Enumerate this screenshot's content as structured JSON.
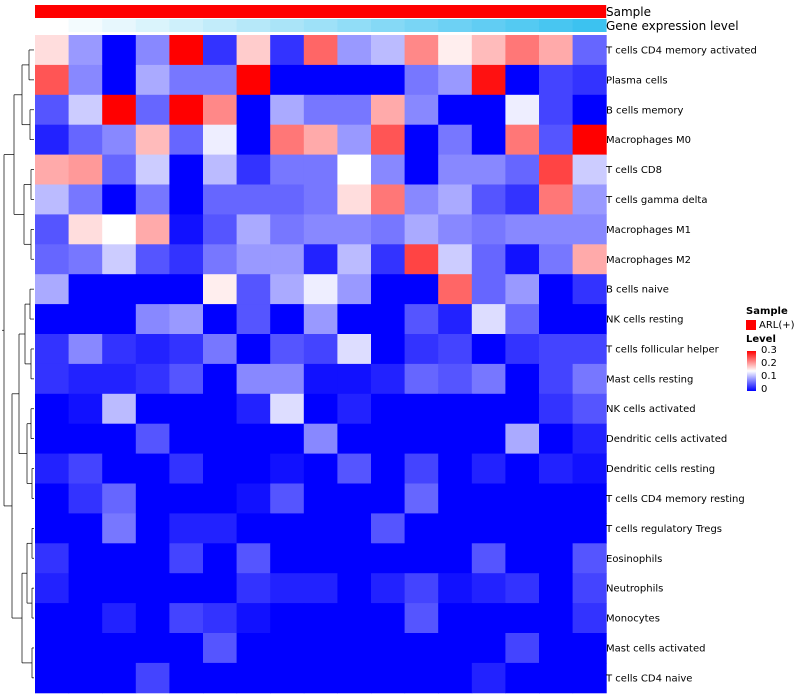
{
  "chart_data": {
    "type": "heatmap",
    "annotations": [
      {
        "name": "Sample",
        "color": "#ff0000"
      },
      {
        "name": "Gene expression level",
        "gradient": [
          "#ffffff",
          "#3cc2f0"
        ]
      }
    ],
    "rows": [
      "T cells CD4 memory activated",
      "Plasma cells",
      "B cells memory",
      "Macrophages M0",
      "T cells CD8",
      "T cells gamma delta",
      "Macrophages M1",
      "Macrophages M2",
      "B cells naive",
      "NK cells resting",
      "T cells follicular helper",
      "Mast cells resting",
      "NK cells activated",
      "Dendritic cells activated",
      "Dendritic cells resting",
      "T cells CD4 memory resting",
      "T cells regulatory  Tregs",
      "Eosinophils",
      "Neutrophils",
      "Monocytes",
      "Mast cells activated",
      "T cells CD4 naive"
    ],
    "n_columns": 17,
    "values": [
      [
        0.17,
        0.09,
        0,
        0.08,
        0.3,
        0.03,
        0.18,
        0.03,
        0.24,
        0.09,
        0.11,
        0.22,
        0.16,
        0.19,
        0.23,
        0.2,
        0.06
      ],
      [
        0.25,
        0.08,
        0,
        0.1,
        0.07,
        0.07,
        0.3,
        0,
        0,
        0,
        0,
        0.07,
        0.09,
        0.29,
        0,
        0.04,
        0.03
      ],
      [
        0.05,
        0.12,
        0.3,
        0.06,
        0.3,
        0.22,
        0,
        0.1,
        0.07,
        0.07,
        0.2,
        0.08,
        0,
        0,
        0.14,
        0.04,
        0
      ],
      [
        0.02,
        0.06,
        0.08,
        0.19,
        0.06,
        0.14,
        0,
        0.23,
        0.2,
        0.09,
        0.25,
        0,
        0.07,
        0,
        0.23,
        0.05,
        0.3
      ],
      [
        0.2,
        0.21,
        0.06,
        0.12,
        0,
        0.11,
        0.03,
        0.07,
        0.07,
        0.15,
        0.08,
        0,
        0.08,
        0.08,
        0.06,
        0.26,
        0.12
      ],
      [
        0.11,
        0.07,
        0,
        0.07,
        0,
        0.06,
        0.06,
        0.06,
        0.07,
        0.17,
        0.23,
        0.08,
        0.1,
        0.05,
        0.03,
        0.23,
        0.09
      ],
      [
        0.05,
        0.17,
        0.15,
        0.2,
        0.01,
        0.05,
        0.1,
        0.07,
        0.08,
        0.08,
        0.07,
        0.1,
        0.08,
        0.07,
        0.08,
        0.08,
        0.08
      ],
      [
        0.06,
        0.07,
        0.12,
        0.05,
        0.03,
        0.07,
        0.09,
        0.09,
        0.02,
        0.11,
        0.03,
        0.26,
        0.12,
        0.06,
        0.01,
        0.07,
        0.2
      ],
      [
        0.1,
        0,
        0,
        0,
        0,
        0.16,
        0.05,
        0.1,
        0.14,
        0.09,
        0,
        0,
        0.24,
        0.06,
        0.09,
        0,
        0.03
      ],
      [
        0,
        0,
        0,
        0.08,
        0.09,
        0,
        0.05,
        0,
        0.09,
        0,
        0,
        0.05,
        0.02,
        0.13,
        0.06,
        0,
        0
      ],
      [
        0.03,
        0.08,
        0.03,
        0.02,
        0.03,
        0.07,
        0,
        0.05,
        0.04,
        0.13,
        0,
        0.03,
        0.04,
        0,
        0.03,
        0.04,
        0.04
      ],
      [
        0.03,
        0.02,
        0.02,
        0.03,
        0.05,
        0,
        0.08,
        0.08,
        0.01,
        0.01,
        0.02,
        0.06,
        0.05,
        0.07,
        0,
        0.04,
        0.07
      ],
      [
        0,
        0.01,
        0.11,
        0,
        0,
        0,
        0.02,
        0.13,
        0,
        0.02,
        0,
        0,
        0,
        0,
        0,
        0.03,
        0.05
      ],
      [
        0,
        0,
        0,
        0.05,
        0,
        0,
        0,
        0,
        0.08,
        0,
        0,
        0,
        0,
        0,
        0.1,
        0,
        0.02
      ],
      [
        0.02,
        0.04,
        0,
        0,
        0.03,
        0,
        0,
        0.01,
        0,
        0.05,
        0,
        0.04,
        0,
        0.02,
        0,
        0.02,
        0.01
      ],
      [
        0,
        0.03,
        0.06,
        0,
        0,
        0,
        0.01,
        0.05,
        0,
        0,
        0,
        0.06,
        0,
        0,
        0,
        0,
        0
      ],
      [
        0,
        0,
        0.07,
        0,
        0.02,
        0.02,
        0,
        0,
        0,
        0,
        0.05,
        0,
        0,
        0,
        0,
        0,
        0
      ],
      [
        0.03,
        0,
        0,
        0,
        0.04,
        0,
        0.05,
        0,
        0,
        0,
        0,
        0,
        0,
        0.05,
        0,
        0,
        0.05
      ],
      [
        0.02,
        0,
        0,
        0,
        0,
        0,
        0.03,
        0.02,
        0.02,
        0,
        0.02,
        0.04,
        0.01,
        0.02,
        0.03,
        0,
        0.04
      ],
      [
        0,
        0,
        0.02,
        0,
        0.04,
        0.03,
        0.01,
        0,
        0,
        0,
        0,
        0.05,
        0,
        0,
        0,
        0,
        0.03
      ],
      [
        0,
        0,
        0,
        0,
        0,
        0.05,
        0,
        0,
        0,
        0,
        0,
        0,
        0,
        0,
        0.04,
        0,
        0
      ],
      [
        0,
        0,
        0,
        0.04,
        0,
        0,
        0,
        0,
        0,
        0,
        0,
        0,
        0,
        0.02,
        0,
        0,
        0
      ]
    ],
    "color_scale": {
      "min": 0,
      "mid": 0.15,
      "max": 0.3,
      "low": "#0000ff",
      "mid_color": "#ffffff",
      "high": "#ff0000"
    },
    "row_dendrogram": true
  },
  "legend": {
    "sample_title": "Sample",
    "sample_item": "ARL(+)",
    "level_title": "Level",
    "ticks": [
      "0.3",
      "0.2",
      "0.1",
      "0"
    ]
  }
}
